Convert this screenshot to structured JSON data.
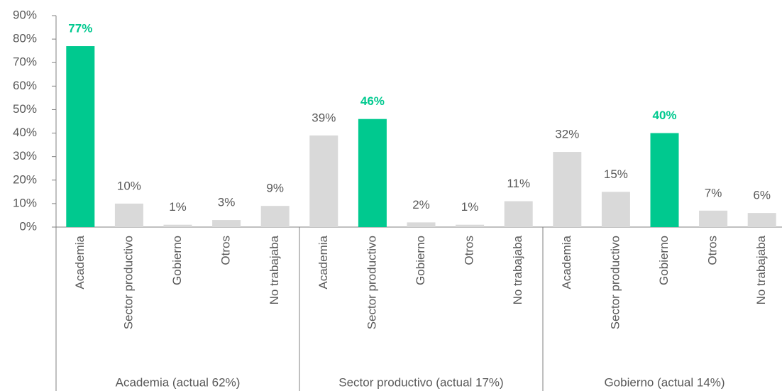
{
  "chart_data": {
    "type": "bar",
    "groups": [
      "Academia (actual 62%)",
      "Sector productivo (actual 17%)",
      "Gobierno (actual 14%)"
    ],
    "categories": [
      "Academia",
      "Sector productivo",
      "Gobierno",
      "Otros",
      "No trabajaba",
      "Academia",
      "Sector productivo",
      "Gobierno",
      "Otros",
      "No trabajaba",
      "Academia",
      "Sector productivo",
      "Gobierno",
      "Otros",
      "No trabajaba"
    ],
    "values": [
      77,
      10,
      1,
      3,
      9,
      39,
      46,
      2,
      1,
      11,
      32,
      15,
      40,
      7,
      6
    ],
    "value_labels": [
      "77%",
      "10%",
      "1%",
      "3%",
      "9%",
      "39%",
      "46%",
      "2%",
      "1%",
      "11%",
      "32%",
      "15%",
      "40%",
      "7%",
      "6%"
    ],
    "colors": [
      "#00c98f",
      "#d9d9d9",
      "#d9d9d9",
      "#d9d9d9",
      "#d9d9d9",
      "#d9d9d9",
      "#00c98f",
      "#d9d9d9",
      "#d9d9d9",
      "#d9d9d9",
      "#d9d9d9",
      "#d9d9d9",
      "#00c98f",
      "#d9d9d9",
      "#d9d9d9"
    ],
    "label_colors": [
      "#00c98f",
      "#595959",
      "#595959",
      "#595959",
      "#595959",
      "#595959",
      "#00c98f",
      "#595959",
      "#595959",
      "#595959",
      "#595959",
      "#595959",
      "#00c98f",
      "#595959",
      "#595959"
    ],
    "ylim": [
      0,
      90
    ],
    "yticks": [
      {
        "value": 0,
        "label": "0%"
      },
      {
        "value": 10,
        "label": "10%"
      },
      {
        "value": 20,
        "label": "20%"
      },
      {
        "value": 30,
        "label": "30%"
      },
      {
        "value": 40,
        "label": "40%"
      },
      {
        "value": 50,
        "label": "50%"
      },
      {
        "value": 60,
        "label": "60%"
      },
      {
        "value": 70,
        "label": "70%"
      },
      {
        "value": 80,
        "label": "80%"
      },
      {
        "value": 90,
        "label": "90%"
      }
    ],
    "grid": false
  }
}
